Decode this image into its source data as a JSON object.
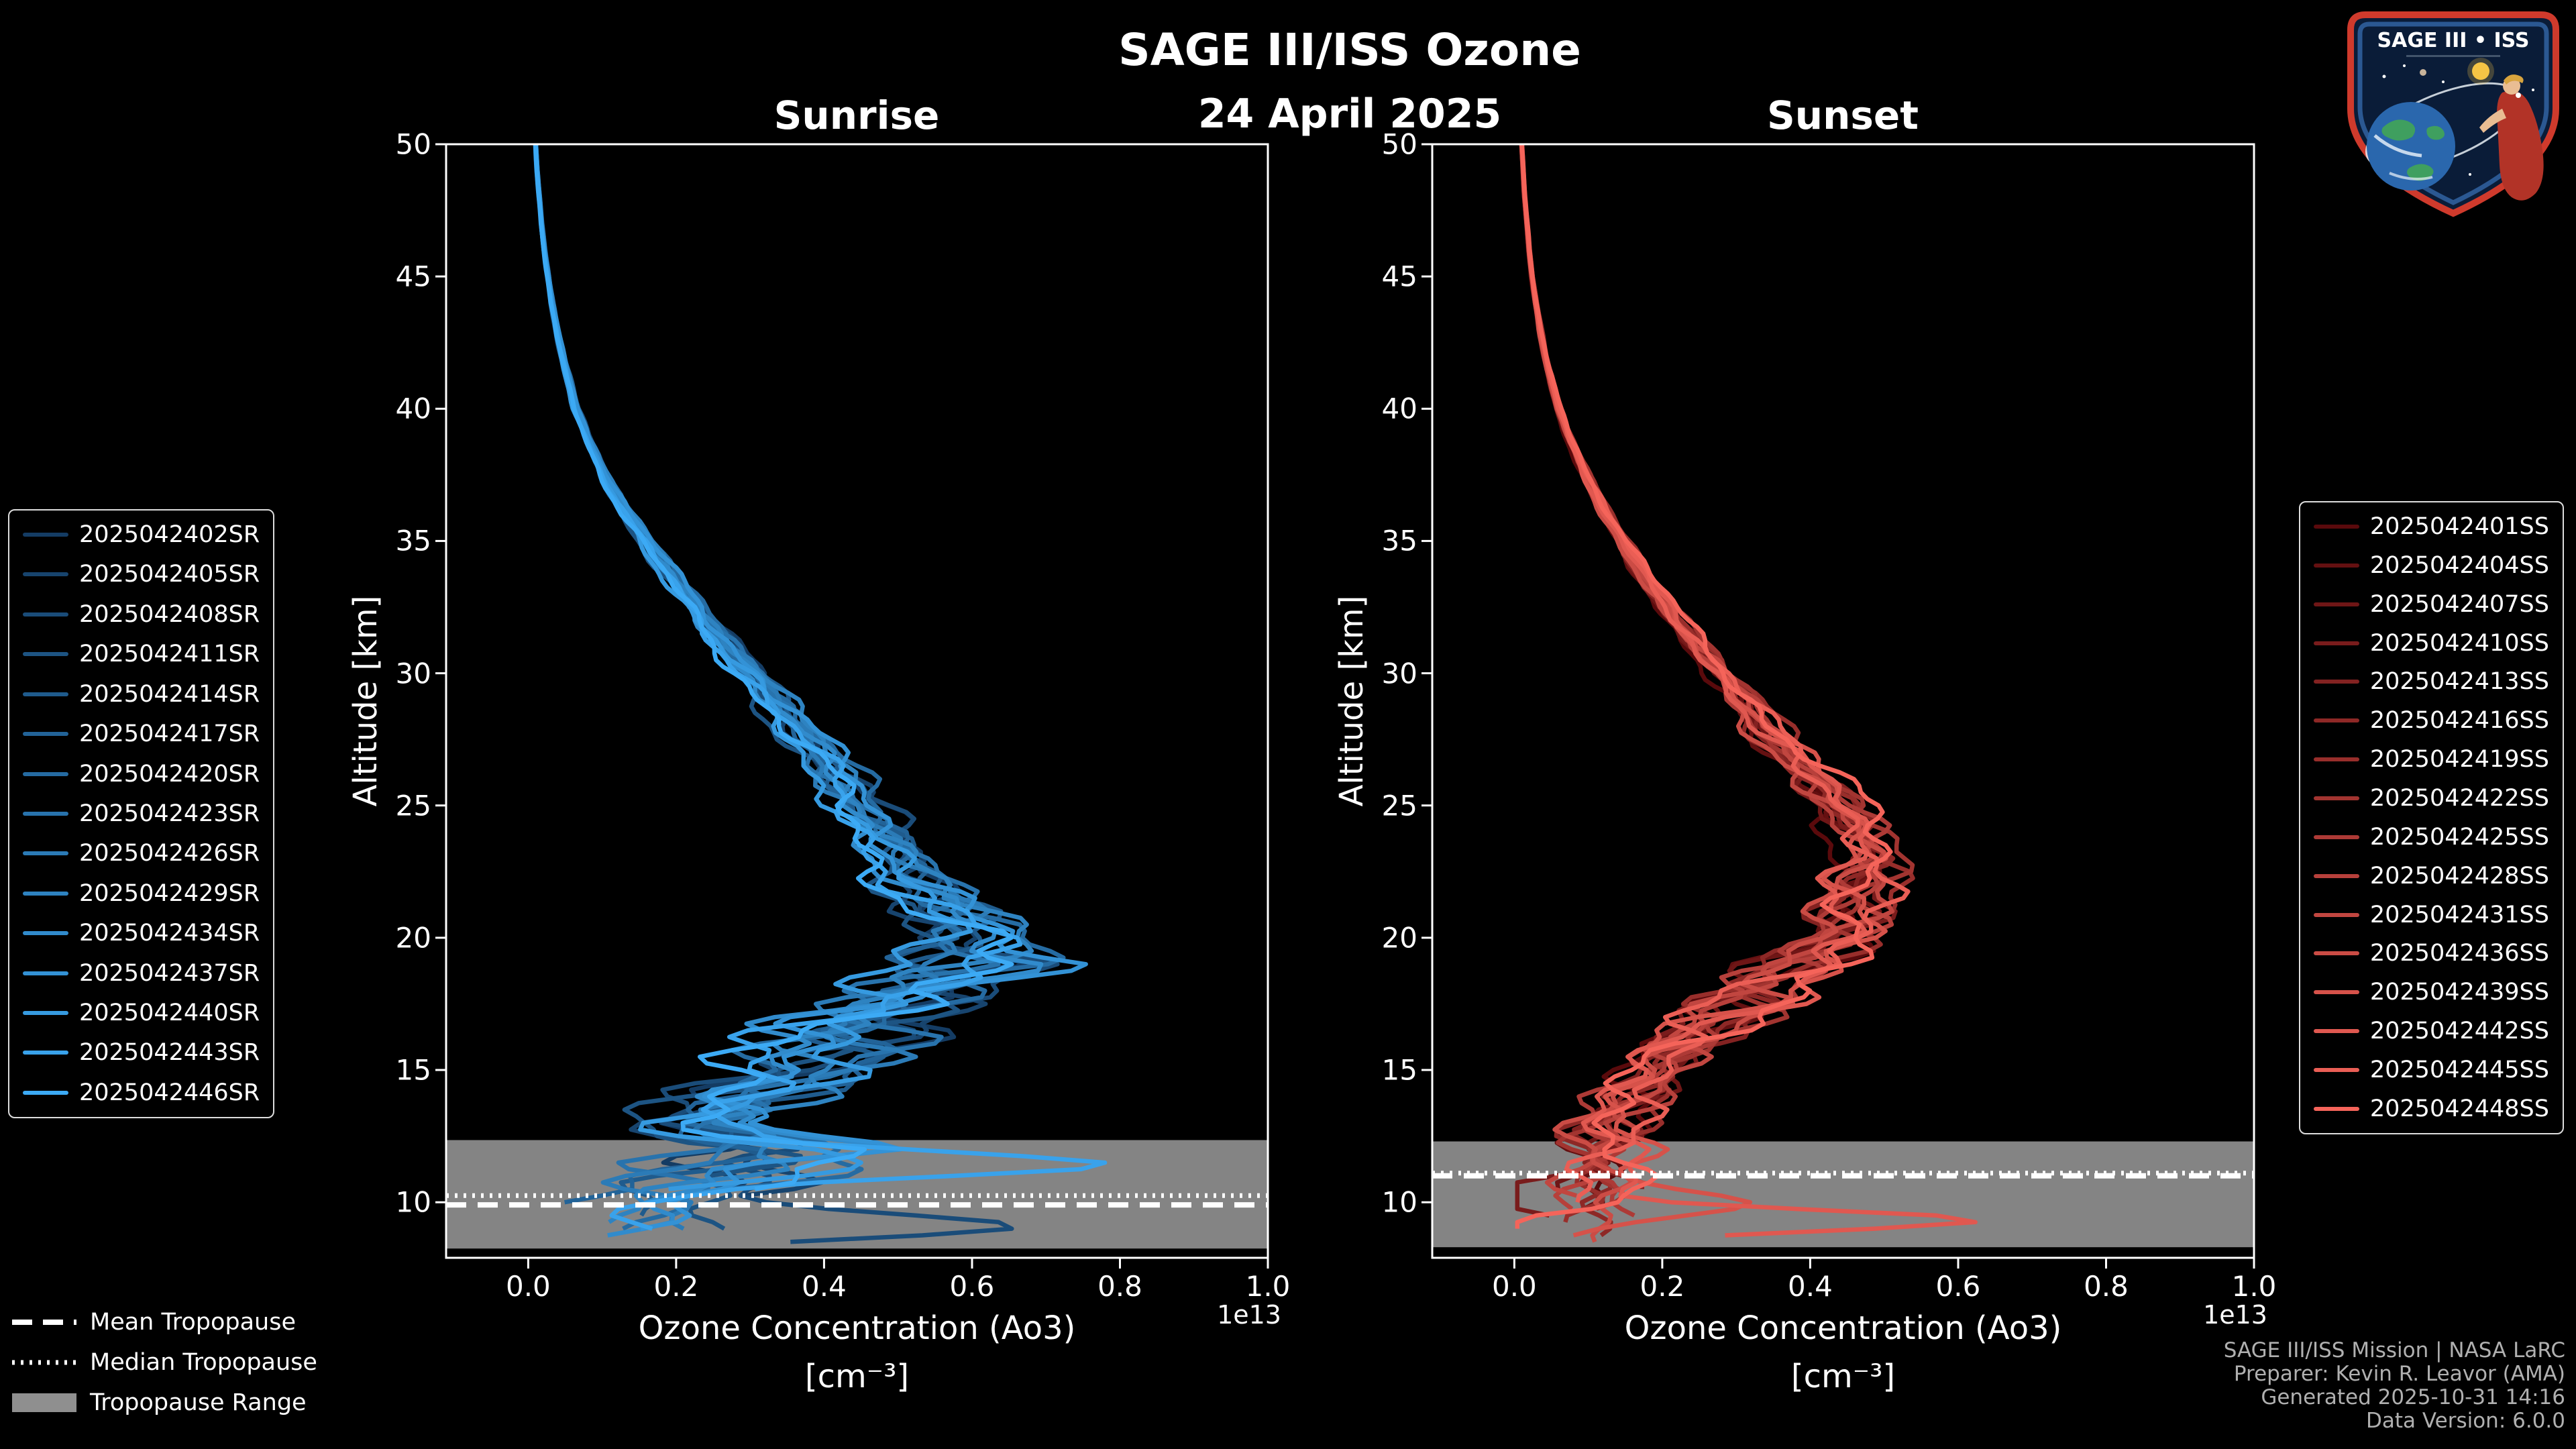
{
  "header": {
    "title": "SAGE III/ISS Ozone",
    "date": "24 April 2025"
  },
  "logo": {
    "title": "SAGE III • ISS"
  },
  "footer": {
    "lines": [
      "SAGE III/ISS Mission | NASA LaRC",
      "Preparer: Kevin R. Leavor (AMA)",
      "Generated 2025-10-31 14:16",
      "Data Version: 6.0.0"
    ]
  },
  "chart_data": {
    "type": "line",
    "title": "SAGE III/ISS Ozone",
    "subtitle": "24 April 2025",
    "xlabel": "Ozone Concentration (Ao3)",
    "xlabel_units": "[cm⁻³]",
    "x_offset_text": "1e13",
    "ylabel": "Altitude [km]",
    "xlim": [
      -0.111,
      1.0
    ],
    "ylim": [
      7.9,
      50.0
    ],
    "xticks": [
      "0.0",
      "0.2",
      "0.4",
      "0.6",
      "0.8",
      "1.0"
    ],
    "xtick_values": [
      0.0,
      0.2,
      0.4,
      0.6,
      0.8,
      1.0
    ],
    "yticks": [
      "10",
      "15",
      "20",
      "25",
      "30",
      "35",
      "40",
      "45",
      "50"
    ],
    "ytick_values": [
      10,
      15,
      20,
      25,
      30,
      35,
      40,
      45,
      50
    ],
    "grid": false,
    "background": "#000000",
    "axis_color": "#ffffff",
    "band_color": "#8f8f8f",
    "altitudes_km": [
      50,
      49,
      48,
      47,
      46,
      45,
      44,
      43,
      42,
      41,
      40,
      39,
      38,
      37,
      36,
      35,
      34,
      33,
      32,
      31,
      30,
      29,
      28,
      27,
      26,
      25,
      24,
      23,
      22,
      21,
      20,
      19,
      18,
      17,
      16,
      15,
      14,
      13,
      12,
      11,
      10,
      9,
      8.5
    ],
    "panels": [
      {
        "title": "Sunrise",
        "legend_side": "left",
        "series": [
          {
            "label": "2025042402SR",
            "color": "#143C64"
          },
          {
            "label": "2025042405SR",
            "color": "#17446E"
          },
          {
            "label": "2025042408SR",
            "color": "#1A4C79"
          },
          {
            "label": "2025042411SR",
            "color": "#1D5483"
          },
          {
            "label": "2025042414SR",
            "color": "#1F5B8D"
          },
          {
            "label": "2025042417SR",
            "color": "#226398"
          },
          {
            "label": "2025042420SR",
            "color": "#256BA2"
          },
          {
            "label": "2025042423SR",
            "color": "#2873AD"
          },
          {
            "label": "2025042426SR",
            "color": "#2B7BB7"
          },
          {
            "label": "2025042429SR",
            "color": "#2E83C1"
          },
          {
            "label": "2025042434SR",
            "color": "#318BCC"
          },
          {
            "label": "2025042437SR",
            "color": "#3392D6"
          },
          {
            "label": "2025042440SR",
            "color": "#369AE0"
          },
          {
            "label": "2025042443SR",
            "color": "#39A2EB"
          },
          {
            "label": "2025042446SR",
            "color": "#3CAAF5"
          }
        ],
        "mean_profile_1e13": [
          0.01,
          0.012,
          0.015,
          0.018,
          0.022,
          0.027,
          0.032,
          0.039,
          0.046,
          0.055,
          0.065,
          0.079,
          0.095,
          0.113,
          0.134,
          0.158,
          0.185,
          0.212,
          0.24,
          0.27,
          0.3,
          0.33,
          0.36,
          0.39,
          0.42,
          0.45,
          0.475,
          0.5,
          0.53,
          0.56,
          0.6,
          0.62,
          0.52,
          0.46,
          0.42,
          0.36,
          0.285,
          0.23,
          0.33,
          0.27,
          0.22,
          0.18,
          0.15
        ],
        "tropopause_km": {
          "mean": 9.9,
          "median": 10.25,
          "range": [
            8.25,
            12.35
          ]
        }
      },
      {
        "title": "Sunset",
        "legend_side": "right",
        "series": [
          {
            "label": "2025042401SS",
            "color": "#5A0A0C"
          },
          {
            "label": "2025042404SS",
            "color": "#641011"
          },
          {
            "label": "2025042407SS",
            "color": "#6F1616"
          },
          {
            "label": "2025042410SS",
            "color": "#791C1C"
          },
          {
            "label": "2025042413SS",
            "color": "#832221"
          },
          {
            "label": "2025042416SS",
            "color": "#8E2826"
          },
          {
            "label": "2025042419SS",
            "color": "#982E2B"
          },
          {
            "label": "2025042422SS",
            "color": "#A23430"
          },
          {
            "label": "2025042425SS",
            "color": "#AD3A36"
          },
          {
            "label": "2025042428SS",
            "color": "#B7403B"
          },
          {
            "label": "2025042431SS",
            "color": "#C14640"
          },
          {
            "label": "2025042436SS",
            "color": "#CB4C45"
          },
          {
            "label": "2025042439SS",
            "color": "#D6524A"
          },
          {
            "label": "2025042442SS",
            "color": "#E05850"
          },
          {
            "label": "2025042445SS",
            "color": "#EA5E55"
          },
          {
            "label": "2025042448SS",
            "color": "#F5645A"
          }
        ],
        "mean_profile_1e13": [
          0.01,
          0.012,
          0.014,
          0.017,
          0.02,
          0.024,
          0.029,
          0.035,
          0.042,
          0.05,
          0.06,
          0.073,
          0.088,
          0.105,
          0.125,
          0.147,
          0.17,
          0.195,
          0.22,
          0.25,
          0.28,
          0.31,
          0.34,
          0.375,
          0.41,
          0.45,
          0.47,
          0.48,
          0.47,
          0.46,
          0.45,
          0.4,
          0.34,
          0.28,
          0.225,
          0.185,
          0.155,
          0.135,
          0.13,
          0.12,
          0.115,
          0.1,
          0.09
        ],
        "tropopause_km": {
          "mean": 11.0,
          "median": 11.1,
          "range": [
            8.3,
            12.3
          ]
        }
      }
    ],
    "tropopause_legend": [
      {
        "label": "Mean Tropopause",
        "style": "dashed"
      },
      {
        "label": "Median Tropopause",
        "style": "dotted"
      },
      {
        "label": "Tropopause Range",
        "style": "patch"
      }
    ],
    "render": {
      "seed": 20250424,
      "noise_freqs": [
        0.85,
        2.1,
        4.6
      ],
      "noise_weights": [
        0.6,
        0.35,
        0.3
      ],
      "amplitude_by_alt": [
        [
          8.4,
          0.45
        ],
        [
          10,
          0.5
        ],
        [
          11.5,
          0.5
        ],
        [
          13,
          0.45
        ],
        [
          15,
          0.32
        ],
        [
          18,
          0.25
        ],
        [
          19.5,
          0.16
        ],
        [
          21,
          0.12
        ],
        [
          23,
          0.09
        ],
        [
          27,
          0.07
        ],
        [
          32,
          0.05
        ],
        [
          40,
          0.03
        ],
        [
          50,
          0.02
        ]
      ],
      "bottom_alt_range": [
        8.4,
        10.6
      ],
      "spike": {
        "prob": 0.22,
        "amp": [
          0.18,
          0.4
        ],
        "alt_range": [
          8.8,
          11.5
        ],
        "width": 0.4
      },
      "forced_spikes": [
        {
          "panel": 0,
          "series": 2,
          "alt": 9.0,
          "amp": 0.45
        },
        {
          "panel": 1,
          "series": 13,
          "alt": 9.3,
          "amp": 0.5
        }
      ],
      "step_km": 0.25,
      "line_width": 6.5
    }
  }
}
